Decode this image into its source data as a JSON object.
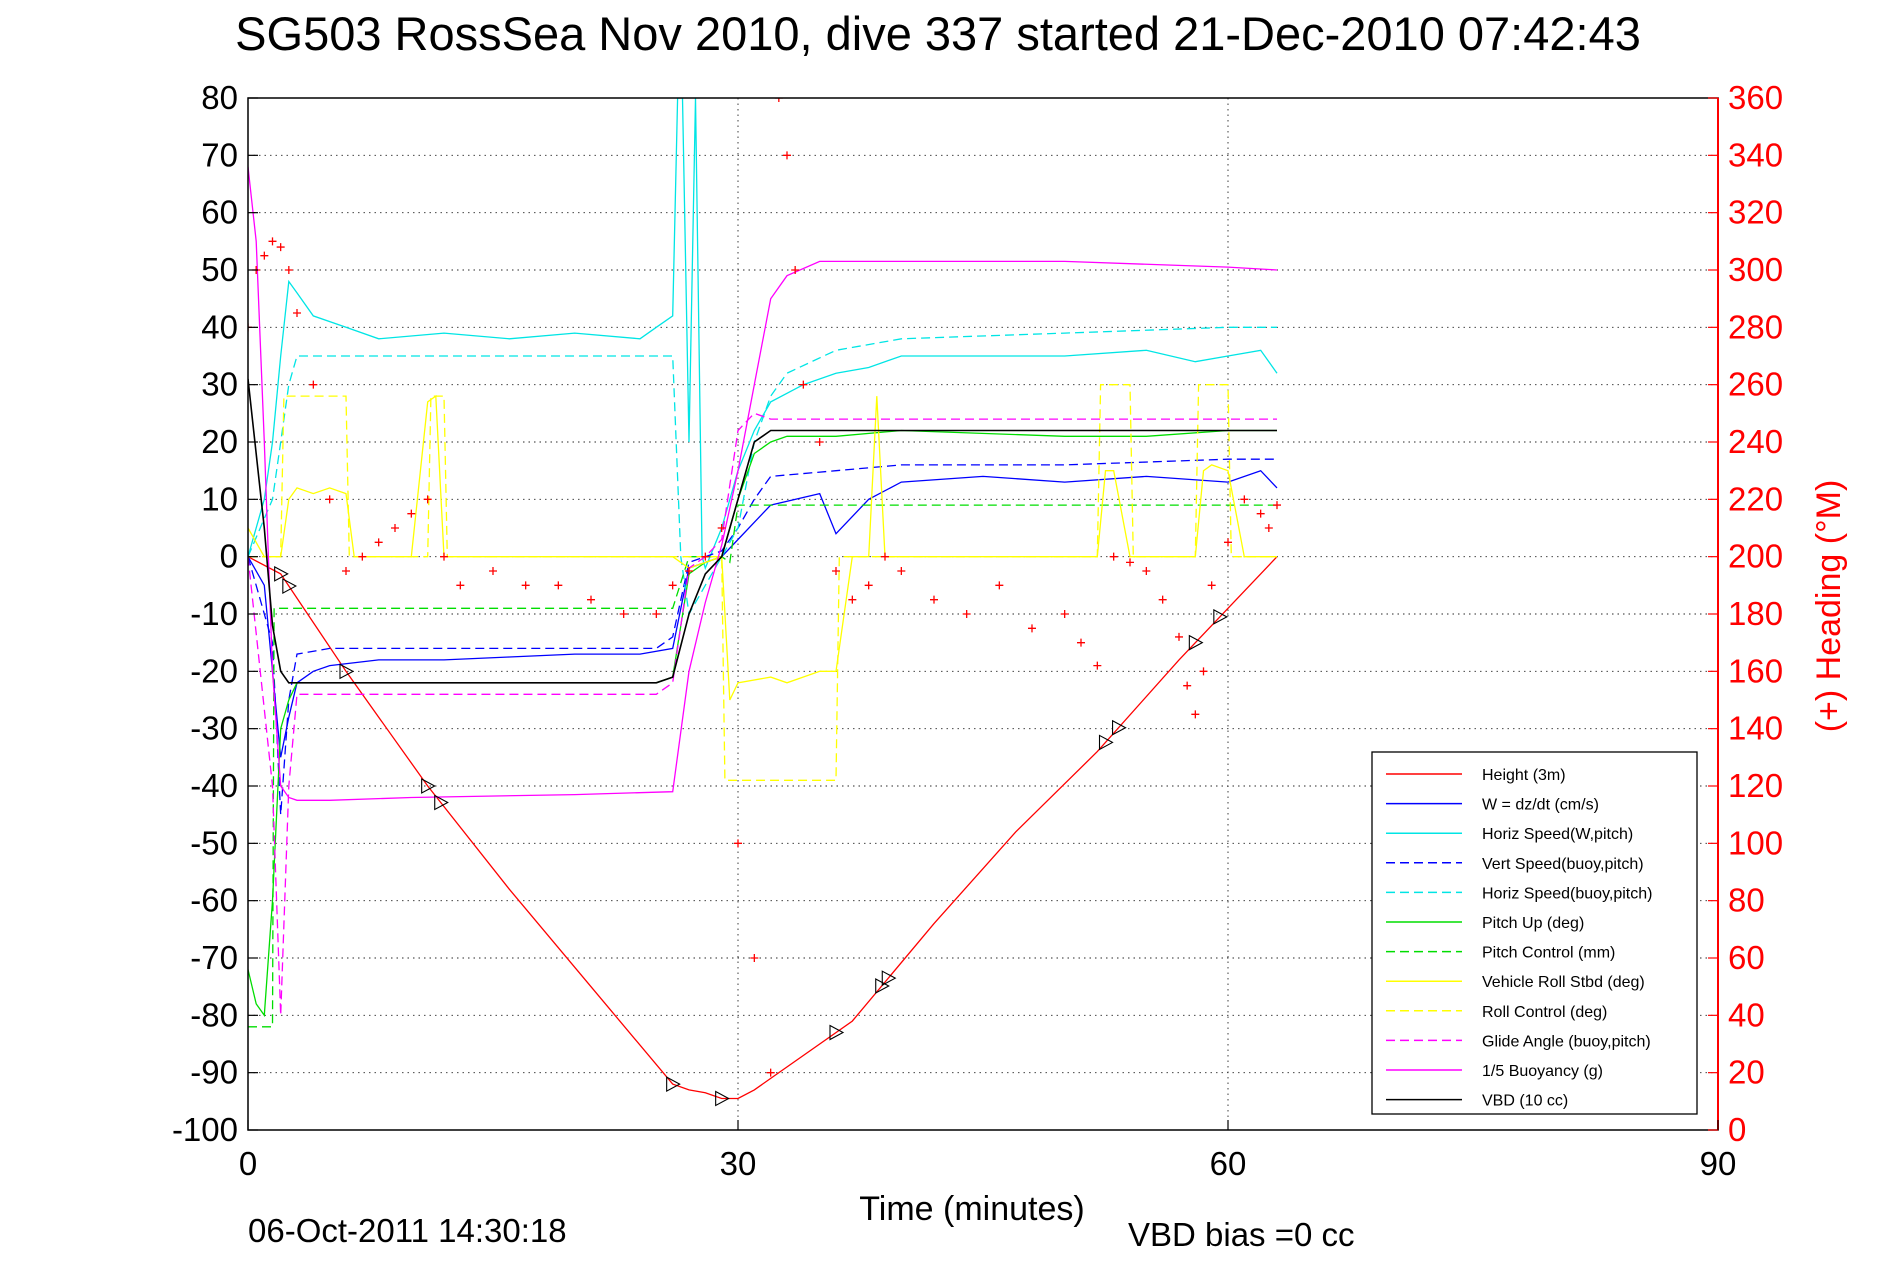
{
  "chart_data": {
    "type": "line",
    "title": "SG503 RossSea Nov 2010, dive 337 started 21-Dec-2010 07:42:43",
    "xlabel": "Time (minutes)",
    "ylabel_right": "(+) Heading (°M)",
    "footer_date": "06-Oct-2011 14:30:18",
    "footer_bias": "VBD bias =0 cc",
    "xlim": [
      0,
      90
    ],
    "ylim": [
      -100,
      80
    ],
    "ylim_right": [
      0,
      360
    ],
    "x_ticks": [
      "0",
      "30",
      "60",
      "90"
    ],
    "y_ticks": [
      "80",
      "70",
      "60",
      "50",
      "40",
      "30",
      "20",
      "10",
      "0",
      "-10",
      "-20",
      "-30",
      "-40",
      "-50",
      "-60",
      "-70",
      "-80",
      "-90",
      "-100"
    ],
    "y_ticks_right": [
      "360",
      "340",
      "320",
      "300",
      "280",
      "260",
      "240",
      "220",
      "200",
      "180",
      "160",
      "140",
      "120",
      "100",
      "80",
      "60",
      "40",
      "20",
      "0"
    ],
    "grid": true,
    "legend_position": "bottom-right",
    "series": [
      {
        "name": "Height (3m)",
        "color": "#ff0000",
        "style": "solid",
        "x": [
          0,
          2,
          6,
          11,
          16,
          21,
          26,
          27,
          28,
          29,
          30,
          31,
          32,
          37,
          42,
          47,
          52,
          57,
          60,
          63
        ],
        "y": [
          0,
          -3,
          -20,
          -40,
          -58,
          -75,
          -92,
          -93,
          -93.5,
          -94.5,
          -94.5,
          -93,
          -91,
          -81,
          -64,
          -48,
          -34,
          -18,
          -9,
          0
        ]
      },
      {
        "name": "W = dz/dt (cm/s)",
        "color": "#0000ff",
        "style": "solid",
        "x": [
          0,
          1,
          1.5,
          2,
          2.5,
          3,
          4,
          5,
          8,
          12,
          16,
          20,
          24,
          26,
          27,
          28,
          29,
          30,
          31,
          32,
          35,
          36,
          38,
          40,
          45,
          50,
          55,
          60,
          62,
          63
        ],
        "y": [
          0,
          -5,
          -20,
          -35,
          -28,
          -22,
          -20,
          -19,
          -18,
          -18,
          -17.5,
          -17,
          -17,
          -16,
          -2,
          -1,
          0,
          3,
          6,
          9,
          11,
          4,
          10,
          13,
          14,
          13,
          14,
          13,
          15,
          12
        ]
      },
      {
        "name": "Horiz Speed(W,pitch)",
        "color": "#00e5e5",
        "style": "solid",
        "x": [
          0,
          1,
          1.5,
          2,
          2.5,
          3,
          4,
          6,
          8,
          12,
          16,
          20,
          24,
          25,
          26,
          26.3,
          26.6,
          27,
          27.4,
          27.8,
          28,
          29,
          30,
          31,
          32,
          34,
          36,
          38,
          40,
          45,
          50,
          55,
          58,
          60,
          62,
          63
        ],
        "y": [
          0,
          10,
          20,
          35,
          48,
          46,
          42,
          40,
          38,
          39,
          38,
          39,
          38,
          40,
          42,
          80,
          80,
          20,
          80,
          0,
          -2,
          5,
          15,
          22,
          27,
          30,
          32,
          33,
          35,
          35,
          35,
          36,
          34,
          35,
          36,
          32
        ]
      },
      {
        "name": "Vert Speed(buoy,pitch)",
        "color": "#0000ff",
        "style": "dashed",
        "x": [
          0,
          1.5,
          2,
          2.5,
          3,
          5,
          10,
          15,
          20,
          25,
          26,
          27,
          28,
          29,
          30,
          31,
          32,
          36,
          40,
          50,
          60,
          63
        ],
        "y": [
          0,
          -15,
          -45,
          -25,
          -17,
          -16,
          -16,
          -16,
          -16,
          -16,
          -14,
          -1,
          0,
          1,
          5,
          10,
          14,
          15,
          16,
          16,
          17,
          17
        ]
      },
      {
        "name": "Horiz Speed(buoy,pitch)",
        "color": "#00e5e5",
        "style": "dashed",
        "x": [
          0,
          1.5,
          2,
          2.5,
          3,
          10,
          20,
          26,
          26.5,
          27,
          28,
          29,
          30,
          31,
          32,
          33,
          36,
          40,
          50,
          60,
          63
        ],
        "y": [
          0,
          10,
          20,
          30,
          35,
          35,
          35,
          35,
          0,
          -10,
          -5,
          0,
          5,
          20,
          28,
          32,
          36,
          38,
          39,
          40,
          40
        ]
      },
      {
        "name": "Pitch Up (deg)",
        "color": "#00dd00",
        "style": "solid",
        "x": [
          0,
          0.5,
          1,
          1.5,
          2,
          2.5,
          3,
          5,
          10,
          15,
          20,
          25,
          26,
          27,
          28,
          29,
          30,
          31,
          32,
          33,
          36,
          40,
          50,
          55,
          60,
          63
        ],
        "y": [
          -72,
          -78,
          -80,
          -60,
          -30,
          -25,
          -22,
          -22,
          -22,
          -22,
          -22,
          -22,
          -21,
          -3,
          -1,
          0,
          10,
          18,
          20,
          21,
          21,
          22,
          21,
          21,
          22,
          22
        ]
      },
      {
        "name": "Pitch Control (mm)",
        "color": "#00dd00",
        "style": "dashed",
        "x": [
          0,
          1.5,
          1.6,
          2,
          2.5,
          25,
          26,
          27,
          29,
          29.5,
          30,
          31,
          60,
          63
        ],
        "y": [
          -82,
          -82,
          -9,
          -9,
          -9,
          -9,
          -9,
          0,
          0,
          -1,
          9,
          9,
          9,
          9
        ]
      },
      {
        "name": "Vehicle Roll Stbd (deg)",
        "color": "#ffff00",
        "style": "solid",
        "x": [
          0,
          1,
          2,
          2.5,
          3,
          4,
          5,
          6,
          6.5,
          10,
          11,
          11.5,
          12,
          20,
          26,
          27,
          29,
          29.5,
          30,
          32,
          33,
          35,
          36,
          37,
          38,
          38.5,
          39,
          40,
          52,
          52.5,
          53,
          54,
          56,
          58,
          58.5,
          59,
          60,
          61,
          63
        ],
        "y": [
          5,
          0,
          0,
          10,
          12,
          11,
          12,
          11,
          0,
          0,
          27,
          28,
          0,
          0,
          0,
          -2,
          0,
          -25,
          -22,
          -21,
          -22,
          -20,
          -20,
          0,
          0,
          28,
          0,
          0,
          0,
          15,
          15,
          0,
          0,
          0,
          15,
          16,
          15,
          0,
          0
        ]
      },
      {
        "name": "Roll Control (deg)",
        "color": "#ffff00",
        "style": "dashed",
        "x": [
          0,
          2,
          2.2,
          6,
          6.2,
          11,
          11.2,
          12,
          12.2,
          25,
          29,
          29.2,
          36,
          36.2,
          52,
          52.2,
          54,
          54.2,
          58,
          58.2,
          60,
          60.2,
          63
        ],
        "y": [
          0,
          0,
          28,
          28,
          0,
          0,
          28,
          28,
          0,
          0,
          0,
          -39,
          -39,
          0,
          0,
          30,
          30,
          0,
          0,
          30,
          30,
          0,
          0
        ]
      },
      {
        "name": "Glide Angle (buoy,pitch)",
        "color": "#ff00ff",
        "style": "dashed",
        "x": [
          0,
          1.5,
          2,
          2.5,
          3,
          5,
          10,
          15,
          20,
          25,
          26,
          27,
          28,
          29,
          30,
          31,
          32,
          36,
          40,
          50,
          60,
          63
        ],
        "y": [
          0,
          -40,
          -80,
          -40,
          -24,
          -24,
          -24,
          -24,
          -24,
          -24,
          -22,
          -2,
          0,
          3,
          22,
          25,
          24,
          24,
          24,
          24,
          24,
          24
        ]
      },
      {
        "name": "1/5 Buoyancy (g)",
        "color": "#ff00ff",
        "style": "solid",
        "x": [
          0,
          0.5,
          1,
          1.5,
          2,
          2.5,
          3,
          5,
          10,
          20,
          26,
          27,
          28,
          29,
          30,
          31,
          32,
          33,
          35,
          40,
          50,
          60,
          63
        ],
        "y": [
          68,
          55,
          20,
          -20,
          -40,
          -42,
          -42.5,
          -42.5,
          -42,
          -41.5,
          -41,
          -20,
          -8,
          2,
          15,
          30,
          45,
          49,
          51.5,
          51.5,
          51.5,
          50.5,
          50
        ]
      },
      {
        "name": "VBD (10 cc)",
        "color": "#000000",
        "style": "solid",
        "x": [
          0,
          1,
          1.5,
          2,
          2.5,
          3,
          5,
          10,
          15,
          20,
          25,
          26,
          27,
          28,
          29,
          30,
          31,
          32,
          33,
          35,
          40,
          50,
          60,
          63
        ],
        "y": [
          31,
          5,
          -12,
          -20,
          -22,
          -22,
          -22,
          -22,
          -22,
          -22,
          -22,
          -21,
          -10,
          -3,
          0,
          10,
          20,
          22,
          22,
          22,
          22,
          22,
          22,
          22
        ]
      }
    ],
    "heading_series": {
      "name": "(+) Heading (°M)",
      "color": "#ff0000",
      "marker": "+",
      "x": [
        0,
        0.5,
        1,
        1.5,
        2,
        2.5,
        3,
        4,
        5,
        6,
        7,
        8,
        9,
        10,
        11,
        12,
        13,
        15,
        17,
        19,
        21,
        23,
        25,
        26,
        27,
        28,
        29,
        30,
        31,
        32,
        32.5,
        33,
        33.5,
        34,
        35,
        36,
        37,
        38,
        39,
        40,
        42,
        44,
        46,
        48,
        50,
        51,
        52,
        53,
        54,
        55,
        56,
        57,
        57.5,
        58,
        58.5,
        59,
        60,
        61,
        62,
        62.5,
        63
      ],
      "y": [
        280,
        300,
        305,
        310,
        308,
        300,
        285,
        260,
        220,
        195,
        200,
        205,
        210,
        215,
        220,
        200,
        190,
        195,
        190,
        190,
        185,
        180,
        180,
        190,
        195,
        200,
        210,
        100,
        60,
        20,
        360,
        340,
        300,
        260,
        240,
        195,
        185,
        190,
        200,
        195,
        185,
        180,
        190,
        175,
        180,
        170,
        162,
        200,
        198,
        195,
        185,
        172,
        155,
        145,
        160,
        190,
        205,
        220,
        215,
        210,
        218
      ]
    }
  }
}
